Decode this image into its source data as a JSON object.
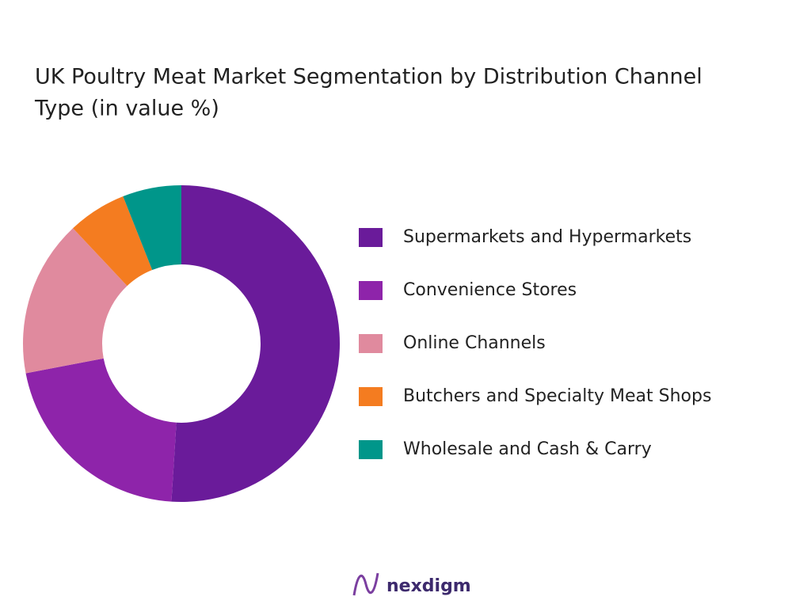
{
  "chart_data": {
    "type": "donut",
    "title_lines": [
      "UK Poultry Meat Market Segmentation by Distribution Channel",
      "Type  (in value %)"
    ],
    "categories": [
      "Supermarkets and Hypermarkets",
      "Convenience Stores",
      "Online Channels",
      "Butchers and Specialty Meat Shops",
      "Wholesale and Cash & Carry"
    ],
    "values": [
      51,
      21,
      16,
      6,
      6
    ],
    "colors": [
      "#6a1b9a",
      "#8e24aa",
      "#e08a9e",
      "#f47c20",
      "#00968a"
    ],
    "legend": "right"
  },
  "brand": "nexdigm"
}
